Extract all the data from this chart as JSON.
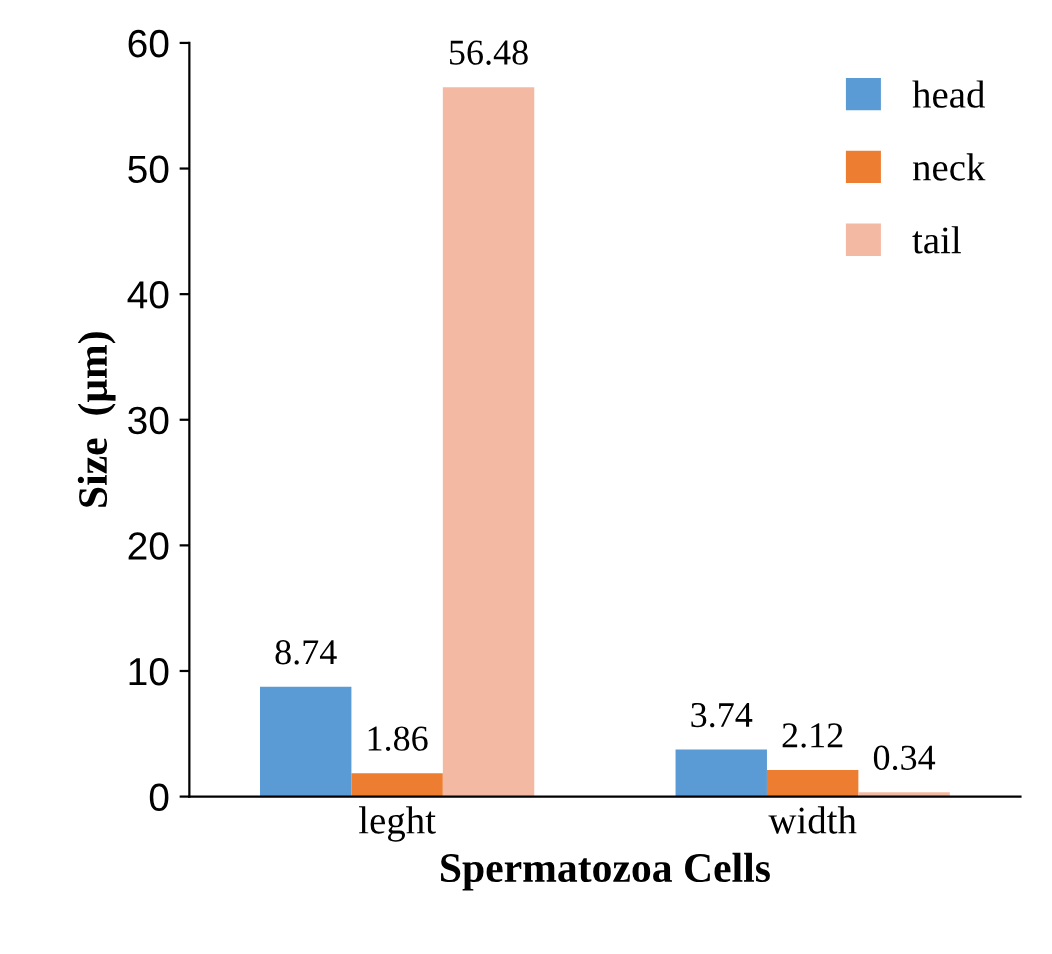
{
  "chart_data": {
    "type": "bar",
    "xlabel": "Spermatozoa Cells",
    "ylabel": "Size  (μm)",
    "categories": [
      "leght",
      "width"
    ],
    "series": [
      {
        "name": "head",
        "color": "#5b9bd5",
        "values": [
          8.74,
          3.74
        ]
      },
      {
        "name": "neck",
        "color": "#ed7d31",
        "values": [
          1.86,
          2.12
        ]
      },
      {
        "name": "tail",
        "color": "#f4b9a3",
        "values": [
          56.48,
          0.34
        ]
      }
    ],
    "ylim": [
      0,
      60
    ],
    "yticks": [
      0,
      10,
      20,
      30,
      40,
      50,
      60
    ],
    "grid": false,
    "legend": "top right",
    "data_labels": true
  }
}
